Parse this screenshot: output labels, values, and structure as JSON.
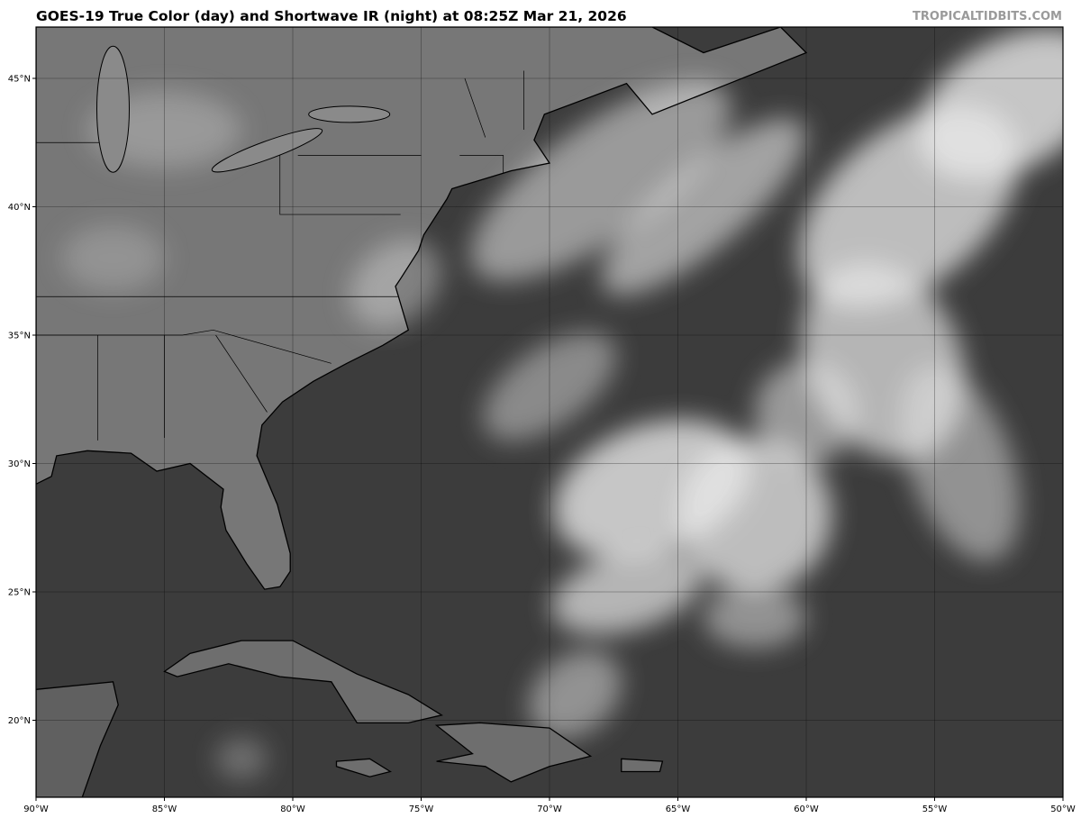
{
  "header": {
    "title": "GOES-19 True Color (day) and Shortwave IR (night) at 08:25Z Mar 21, 2026",
    "watermark": "TROPICALTIDBITS.COM"
  },
  "map": {
    "extent": {
      "lon_min": -90,
      "lon_max": -50,
      "lat_min": 17,
      "lat_max": 47
    },
    "x_ticks": [
      {
        "lon": -90,
        "label": "90°W"
      },
      {
        "lon": -85,
        "label": "85°W"
      },
      {
        "lon": -80,
        "label": "80°W"
      },
      {
        "lon": -75,
        "label": "75°W"
      },
      {
        "lon": -70,
        "label": "70°W"
      },
      {
        "lon": -65,
        "label": "65°W"
      },
      {
        "lon": -60,
        "label": "60°W"
      },
      {
        "lon": -55,
        "label": "55°W"
      },
      {
        "lon": -50,
        "label": "50°W"
      }
    ],
    "y_ticks": [
      {
        "lat": 45,
        "label": "45°N"
      },
      {
        "lat": 40,
        "label": "40°N"
      },
      {
        "lat": 35,
        "label": "35°N"
      },
      {
        "lat": 30,
        "label": "30°N"
      },
      {
        "lat": 25,
        "label": "25°N"
      },
      {
        "lat": 20,
        "label": "20°N"
      }
    ],
    "colors": {
      "ocean": "#3c3c3c",
      "land": "#777777",
      "cloud": "#e8e8e8",
      "coastline": "#000000",
      "grid": "#000000"
    }
  }
}
